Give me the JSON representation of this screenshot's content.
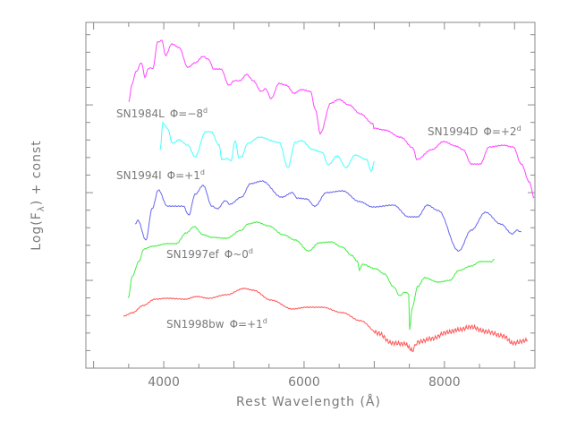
{
  "chart_data": {
    "type": "line",
    "title": "",
    "xlabel": "Rest Wavelength (Å)",
    "ylabel": "Log(F",
    "ylabel_sub": "λ",
    "ylabel_tail": ") + const",
    "xlim": [
      2890,
      9290
    ],
    "ylim": [
      0,
      19.7
    ],
    "x_ticks": [
      4000,
      6000,
      8000
    ],
    "x_minor_step": 500,
    "y_tick_labels": "none",
    "y_major_step": 5,
    "y_minor_step": 1,
    "grid": false,
    "series": [
      {
        "name": "SN1984L",
        "phase": "Φ=−8",
        "sup": "d",
        "color": "#ff44ff",
        "points": [
          [
            3503,
            15.15
          ],
          [
            3541,
            16.12
          ],
          [
            3605,
            16.89
          ],
          [
            3682,
            17.4
          ],
          [
            3732,
            16.58
          ],
          [
            3783,
            17.09
          ],
          [
            3847,
            17.09
          ],
          [
            3911,
            18.57
          ],
          [
            3975,
            18.67
          ],
          [
            4025,
            17.81
          ],
          [
            4115,
            18.47
          ],
          [
            4217,
            18.27
          ],
          [
            4344,
            17.14
          ],
          [
            4446,
            17.4
          ],
          [
            4561,
            17.76
          ],
          [
            4637,
            17.6
          ],
          [
            4713,
            17.04
          ],
          [
            4815,
            17.04
          ],
          [
            4930,
            16.12
          ],
          [
            5006,
            16.38
          ],
          [
            5083,
            16.38
          ],
          [
            5185,
            16.73
          ],
          [
            5274,
            16.38
          ],
          [
            5389,
            15.77
          ],
          [
            5452,
            15.92
          ],
          [
            5529,
            15.36
          ],
          [
            5643,
            16.22
          ],
          [
            5745,
            16.12
          ],
          [
            5860,
            15.66
          ],
          [
            5962,
            15.87
          ],
          [
            6089,
            15.77
          ],
          [
            6166,
            14.69
          ],
          [
            6229,
            13.37
          ],
          [
            6382,
            15.1
          ],
          [
            6497,
            15.31
          ],
          [
            6637,
            15.0
          ],
          [
            6803,
            14.49
          ],
          [
            6981,
            13.93
          ],
          [
            6994,
            13.67
          ],
          [
            7147,
            13.57
          ],
          [
            7376,
            13.16
          ],
          [
            7554,
            12.55
          ],
          [
            7605,
            11.89
          ],
          [
            7822,
            12.45
          ],
          [
            7988,
            12.91
          ],
          [
            8166,
            12.65
          ],
          [
            8268,
            12.45
          ],
          [
            8383,
            11.63
          ],
          [
            8510,
            11.63
          ],
          [
            8637,
            12.6
          ],
          [
            8841,
            12.7
          ],
          [
            8981,
            12.6
          ],
          [
            9096,
            11.63
          ],
          [
            9211,
            10.61
          ],
          [
            9280,
            9.7
          ]
        ]
      },
      {
        "name": "SN1994D",
        "phase": "Φ=+2",
        "sup": "d",
        "color": "#ff44ff",
        "note_same_curve": true
      },
      {
        "name": "SN1994I",
        "phase": "Φ=+1",
        "sup": "d",
        "color": "#44ffff",
        "points": [
          [
            3949,
            12.45
          ],
          [
            3987,
            13.98
          ],
          [
            4051,
            13.67
          ],
          [
            4127,
            12.81
          ],
          [
            4217,
            13.01
          ],
          [
            4344,
            12.7
          ],
          [
            4446,
            12.04
          ],
          [
            4599,
            13.47
          ],
          [
            4675,
            13.47
          ],
          [
            4790,
            12.7
          ],
          [
            4828,
            11.89
          ],
          [
            4917,
            11.94
          ],
          [
            4956,
            11.79
          ],
          [
            5019,
            12.96
          ],
          [
            5070,
            11.99
          ],
          [
            5108,
            12.04
          ],
          [
            5198,
            12.81
          ],
          [
            5363,
            13.16
          ],
          [
            5643,
            12.86
          ],
          [
            5771,
            11.43
          ],
          [
            5873,
            12.86
          ],
          [
            5962,
            12.96
          ],
          [
            6128,
            12.45
          ],
          [
            6255,
            12.3
          ],
          [
            6344,
            11.58
          ],
          [
            6472,
            12.09
          ],
          [
            6599,
            11.43
          ],
          [
            6726,
            12.14
          ],
          [
            6892,
            11.89
          ],
          [
            6956,
            11.22
          ],
          [
            7007,
            11.79
          ]
        ]
      },
      {
        "name": "",
        "color": "#6666ee",
        "points": [
          [
            3592,
            8.21
          ],
          [
            3631,
            8.42
          ],
          [
            3745,
            7.3
          ],
          [
            3834,
            9.08
          ],
          [
            3924,
            10.15
          ],
          [
            4051,
            9.23
          ],
          [
            4280,
            9.23
          ],
          [
            4357,
            8.72
          ],
          [
            4446,
            9.9
          ],
          [
            4561,
            10.41
          ],
          [
            4688,
            9.23
          ],
          [
            4764,
            9.08
          ],
          [
            4879,
            9.54
          ],
          [
            4943,
            9.34
          ],
          [
            5108,
            9.74
          ],
          [
            5236,
            10.51
          ],
          [
            5401,
            10.66
          ],
          [
            5682,
            9.74
          ],
          [
            5835,
            10.0
          ],
          [
            5898,
            9.69
          ],
          [
            6038,
            9.64
          ],
          [
            6153,
            9.23
          ],
          [
            6319,
            10.0
          ],
          [
            6548,
            10.1
          ],
          [
            6790,
            9.49
          ],
          [
            6981,
            9.18
          ],
          [
            7274,
            9.29
          ],
          [
            7491,
            8.62
          ],
          [
            7618,
            8.62
          ],
          [
            7758,
            9.29
          ],
          [
            7911,
            8.98
          ],
          [
            8204,
            6.68
          ],
          [
            8383,
            7.86
          ],
          [
            8586,
            8.88
          ],
          [
            8803,
            8.21
          ],
          [
            8969,
            7.65
          ],
          [
            9032,
            7.86
          ],
          [
            9096,
            7.76
          ]
        ]
      },
      {
        "name": "SN1997ef",
        "phase": "Φ~0",
        "sup": "d",
        "color": "#44ee44",
        "points": [
          [
            3490,
            3.98
          ],
          [
            3554,
            5.26
          ],
          [
            3643,
            6.07
          ],
          [
            3720,
            6.79
          ],
          [
            3834,
            6.94
          ],
          [
            4051,
            7.09
          ],
          [
            4178,
            7.09
          ],
          [
            4319,
            7.7
          ],
          [
            4433,
            8.06
          ],
          [
            4561,
            7.6
          ],
          [
            4688,
            7.45
          ],
          [
            4892,
            7.4
          ],
          [
            5108,
            7.86
          ],
          [
            5198,
            8.21
          ],
          [
            5325,
            8.32
          ],
          [
            5491,
            8.11
          ],
          [
            5707,
            7.6
          ],
          [
            5873,
            7.3
          ],
          [
            6064,
            6.68
          ],
          [
            6217,
            7.14
          ],
          [
            6382,
            7.19
          ],
          [
            6548,
            6.89
          ],
          [
            6675,
            6.43
          ],
          [
            6765,
            6.07
          ],
          [
            6790,
            5.56
          ],
          [
            6828,
            5.92
          ],
          [
            7019,
            5.66
          ],
          [
            7147,
            5.36
          ],
          [
            7274,
            4.64
          ],
          [
            7363,
            4.13
          ],
          [
            7440,
            4.34
          ],
          [
            7491,
            4.23
          ],
          [
            7504,
            2.19
          ],
          [
            7542,
            3.47
          ],
          [
            7618,
            4.64
          ],
          [
            7720,
            5.15
          ],
          [
            7911,
            4.9
          ],
          [
            8077,
            5.0
          ],
          [
            8204,
            5.56
          ],
          [
            8383,
            5.82
          ],
          [
            8510,
            6.07
          ],
          [
            8676,
            6.07
          ],
          [
            8714,
            6.22
          ]
        ]
      },
      {
        "name": "SN1998bw",
        "phase": "Φ=+1",
        "sup": "d",
        "color": "#ff5555",
        "points": [
          [
            3427,
            2.96
          ],
          [
            3554,
            3.16
          ],
          [
            3707,
            3.57
          ],
          [
            3873,
            3.93
          ],
          [
            4051,
            3.98
          ],
          [
            4306,
            3.93
          ],
          [
            4471,
            4.08
          ],
          [
            4637,
            3.98
          ],
          [
            4892,
            4.18
          ],
          [
            5147,
            4.54
          ],
          [
            5274,
            4.44
          ],
          [
            5529,
            3.88
          ],
          [
            5835,
            3.37
          ],
          [
            6038,
            3.47
          ],
          [
            6255,
            3.47
          ],
          [
            6548,
            3.16
          ],
          [
            6803,
            2.7
          ],
          [
            7058,
            1.99
          ],
          [
            7249,
            1.43
          ],
          [
            7440,
            1.38
          ],
          [
            7542,
            1.02
          ],
          [
            7618,
            1.48
          ],
          [
            7822,
            1.68
          ],
          [
            8039,
            2.04
          ],
          [
            8204,
            2.19
          ],
          [
            8383,
            2.35
          ],
          [
            8586,
            2.09
          ],
          [
            8841,
            1.84
          ],
          [
            8969,
            1.43
          ],
          [
            9185,
            1.58
          ]
        ]
      }
    ]
  }
}
